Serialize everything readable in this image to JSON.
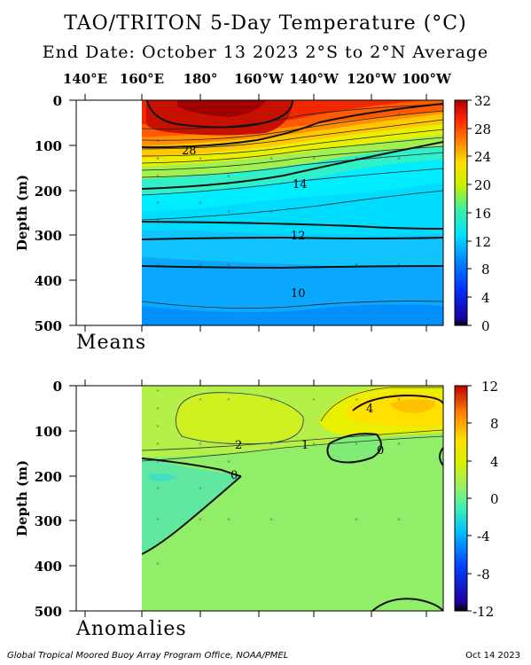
{
  "header": {
    "title": "TAO/TRITON 5-Day Temperature (°C)",
    "subtitle": "End Date: October 13 2023   2°S to 2°N Average"
  },
  "longitude_labels": [
    "140°E",
    "160°E",
    "180°",
    "160°W",
    "140°W",
    "120°W",
    "100°W"
  ],
  "footer": {
    "credit": "Global Tropical Moored Buoy Array Program Office, NOAA/PMEL",
    "date": "Oct 14 2023"
  },
  "chart_data": [
    {
      "type": "heatmap",
      "panel_label": "Means",
      "ylabel": "Depth (m)",
      "y_ticks": [
        0,
        100,
        200,
        300,
        400,
        500
      ],
      "ylim": [
        500,
        0
      ],
      "colorbar": {
        "ticks": [
          32,
          28,
          24,
          20,
          16,
          12,
          8,
          4,
          0
        ],
        "range": [
          0,
          32
        ]
      },
      "contour_labels": [
        "28",
        "14",
        "12",
        "10"
      ],
      "isotherms": [
        {
          "value": 28,
          "depth_west": 105,
          "depth_east": 30
        },
        {
          "value": 14,
          "depth_west": 205,
          "depth_east": 95
        },
        {
          "value": 12,
          "depth_west": 270,
          "depth_east": 300
        },
        {
          "value": 10,
          "depth_west": 330,
          "depth_east": 350
        }
      ]
    },
    {
      "type": "heatmap",
      "panel_label": "Anomalies",
      "ylabel": "Depth (m)",
      "y_ticks": [
        0,
        100,
        200,
        300,
        400,
        500
      ],
      "ylim": [
        500,
        0
      ],
      "colorbar": {
        "ticks": [
          12,
          8,
          4,
          0,
          -4,
          -8,
          -12
        ],
        "range": [
          -12,
          12
        ]
      },
      "contour_labels": [
        "4",
        "2",
        "1",
        "0",
        "0"
      ]
    }
  ]
}
